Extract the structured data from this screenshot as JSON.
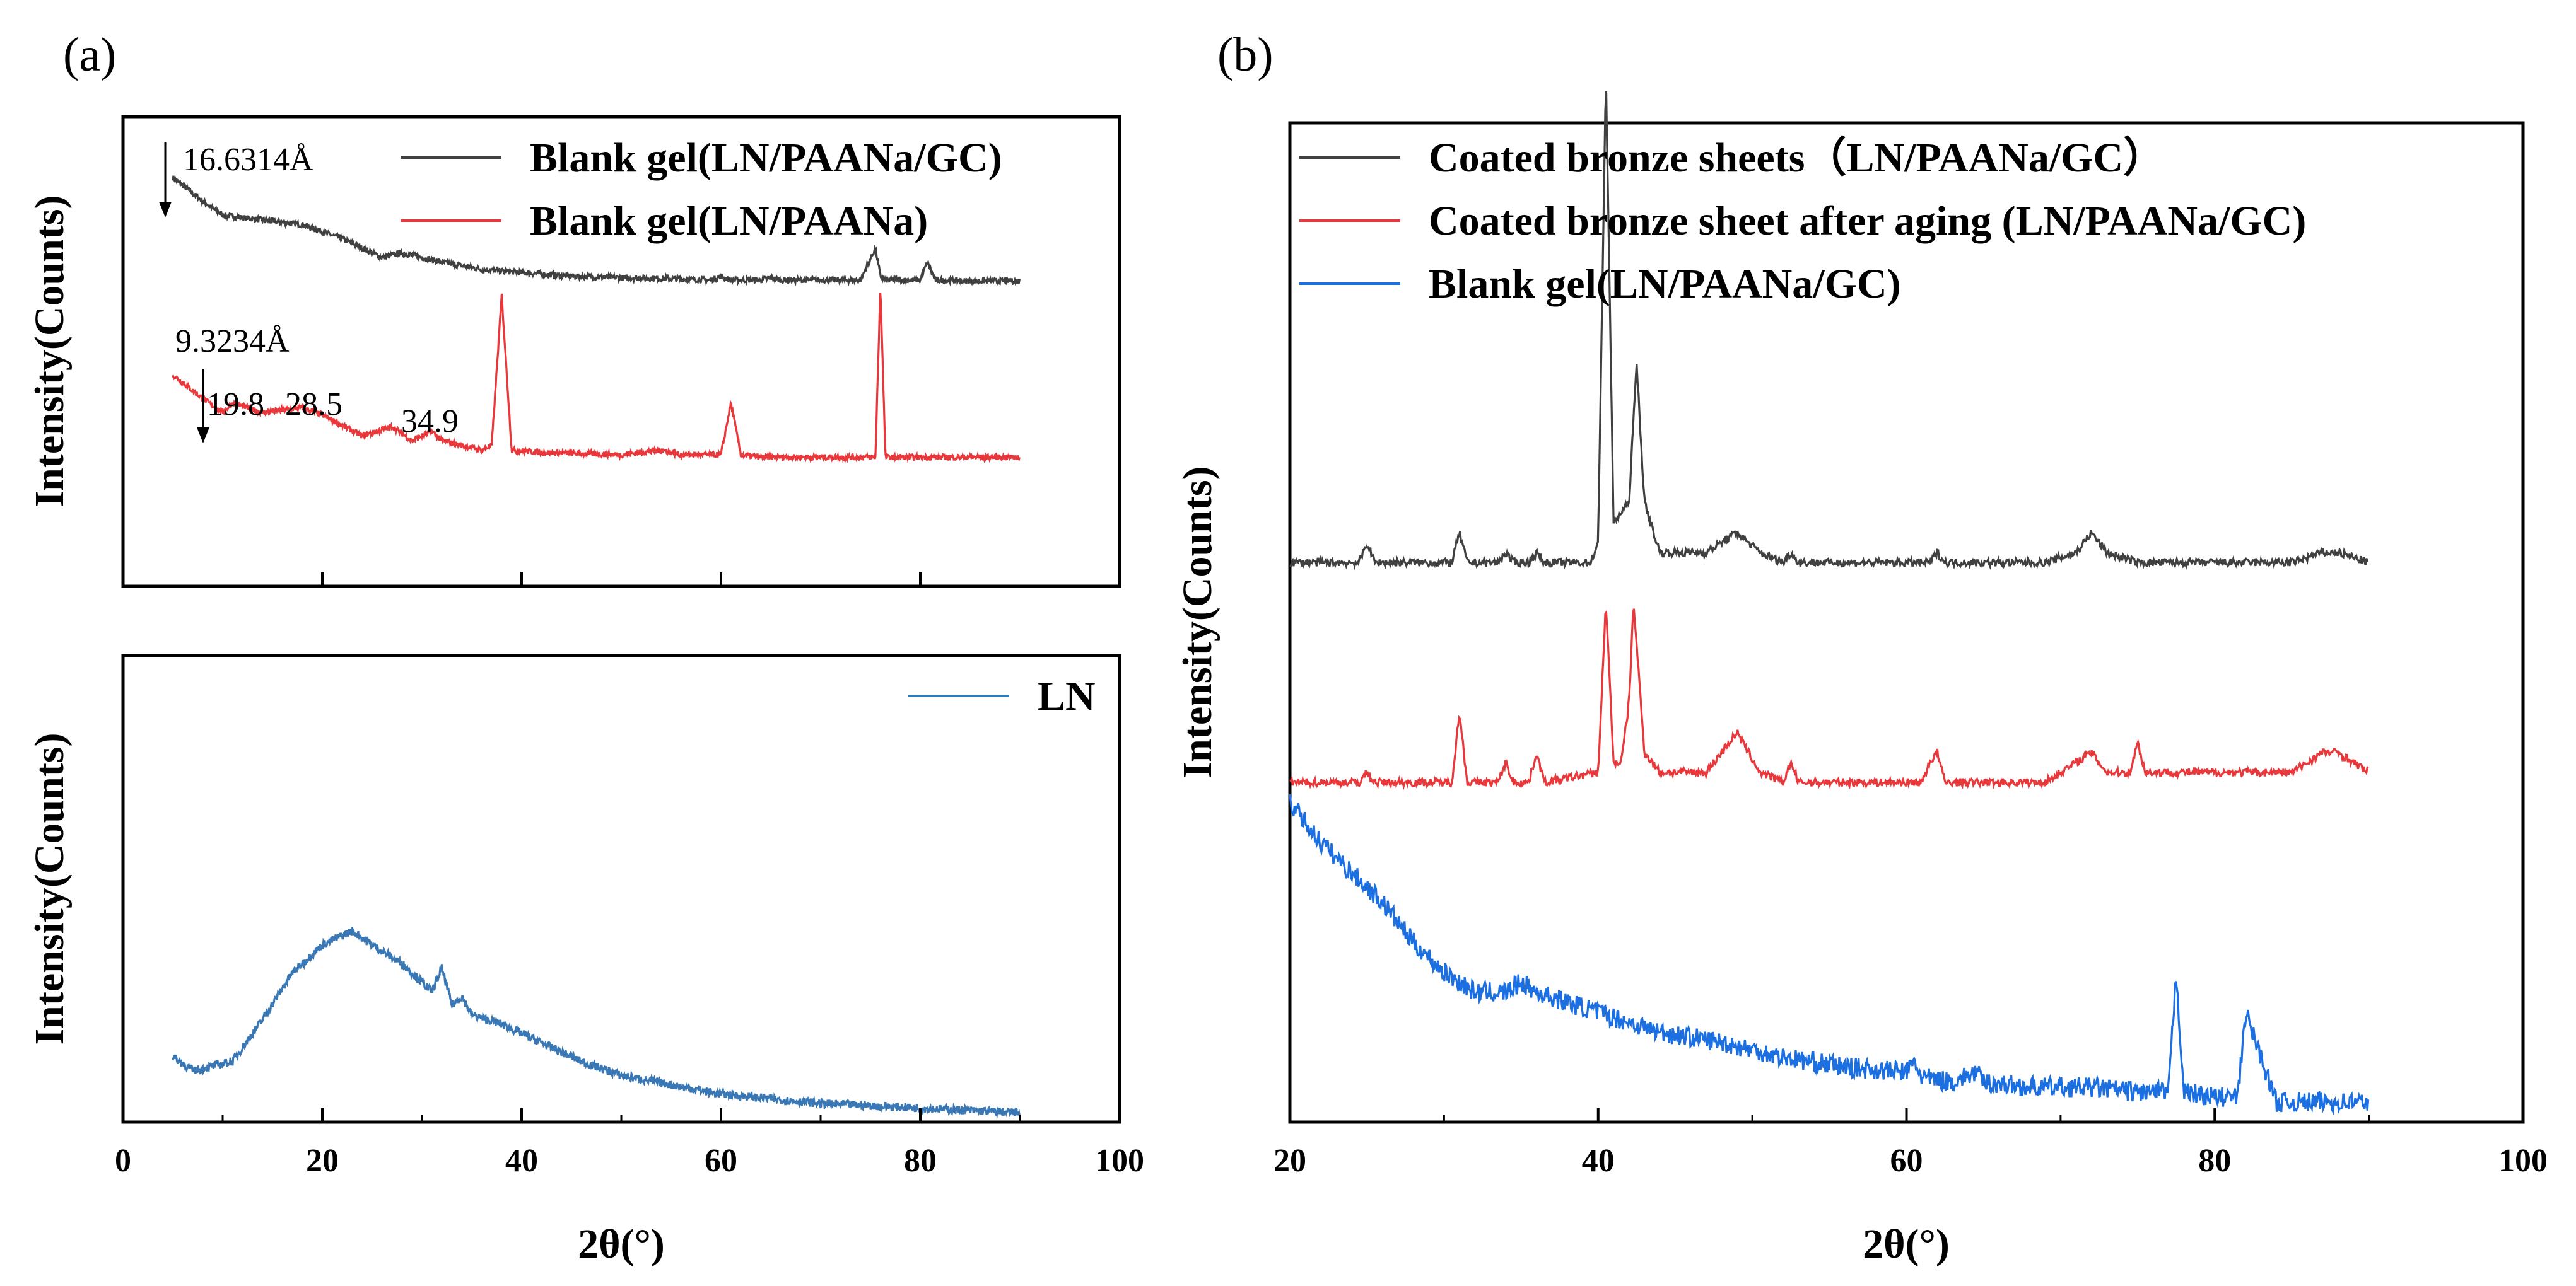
{
  "panels": {
    "a": {
      "label": "(a)"
    },
    "b": {
      "label": "(b)"
    }
  },
  "colors": {
    "gray": "#404040",
    "red": "#e8383b",
    "steelblue": "#3a78b5",
    "blue": "#1c6fe0"
  },
  "chart_data": [
    {
      "id": "a-top",
      "type": "line",
      "xlim": [
        0,
        100
      ],
      "ylabel": "Intensity(Counts)",
      "y_ticks_shown": false,
      "legend_position": "top-right",
      "series": [
        {
          "name": "Blank gel(LN/PAANa/GC)",
          "color": "#404040",
          "x": [
            5,
            8,
            10,
            14,
            18,
            22,
            26,
            28,
            32,
            36,
            40,
            45,
            50,
            55,
            59,
            60,
            61,
            64,
            65,
            66,
            70,
            74,
            75.5,
            76,
            76.5,
            80,
            80.7,
            81.5,
            85,
            90
          ],
          "y": [
            0.87,
            0.82,
            0.79,
            0.78,
            0.77,
            0.74,
            0.7,
            0.71,
            0.69,
            0.675,
            0.668,
            0.66,
            0.657,
            0.655,
            0.652,
            0.66,
            0.652,
            0.652,
            0.657,
            0.652,
            0.652,
            0.652,
            0.72,
            0.66,
            0.652,
            0.652,
            0.69,
            0.652,
            0.65,
            0.65
          ]
        },
        {
          "name": "Blank gel(LN/PAANa)",
          "color": "#e8383b",
          "x": [
            5,
            8,
            10,
            11,
            14,
            18,
            20,
            24,
            27,
            29,
            31,
            32,
            34,
            36,
            37,
            38,
            39,
            42,
            50,
            54,
            56,
            58,
            60,
            61,
            62,
            64,
            70,
            74,
            75.5,
            76,
            76.5,
            78,
            85,
            90
          ],
          "y": [
            0.45,
            0.4,
            0.37,
            0.39,
            0.37,
            0.38,
            0.365,
            0.32,
            0.34,
            0.31,
            0.33,
            0.31,
            0.3,
            0.29,
            0.3,
            0.62,
            0.29,
            0.285,
            0.28,
            0.29,
            0.28,
            0.28,
            0.28,
            0.39,
            0.28,
            0.275,
            0.275,
            0.275,
            0.275,
            0.64,
            0.275,
            0.275,
            0.275,
            0.275
          ]
        }
      ],
      "annotations": [
        {
          "text": "16.6314Å",
          "x": 5.5,
          "y": 0.95
        },
        {
          "text": "9.3234Å",
          "x": 7.5,
          "y": 0.53
        },
        {
          "text": "19.8",
          "x": 7.5,
          "y": 0.44
        },
        {
          "text": "28.5",
          "x": 15,
          "y": 0.44
        },
        {
          "text": "34.9",
          "x": 26,
          "y": 0.33
        }
      ]
    },
    {
      "id": "a-bottom",
      "type": "line",
      "xlim": [
        0,
        100
      ],
      "x_ticks": [
        0,
        20,
        40,
        60,
        80,
        100
      ],
      "xlabel": "2θ(°)",
      "ylabel": "Intensity(Counts)",
      "y_ticks_shown": false,
      "legend_position": "top-right",
      "series": [
        {
          "name": "LN",
          "color": "#3a78b5",
          "x": [
            5,
            7,
            9,
            11,
            14,
            17,
            20,
            22,
            23,
            25,
            28,
            30,
            31,
            32,
            33,
            34,
            35,
            38,
            42,
            46,
            50,
            55,
            60,
            65,
            70,
            75,
            80,
            85,
            90
          ],
          "y": [
            0.14,
            0.11,
            0.12,
            0.13,
            0.22,
            0.32,
            0.38,
            0.4,
            0.41,
            0.38,
            0.34,
            0.3,
            0.28,
            0.33,
            0.25,
            0.27,
            0.23,
            0.21,
            0.17,
            0.13,
            0.1,
            0.08,
            0.06,
            0.05,
            0.04,
            0.035,
            0.03,
            0.025,
            0.02
          ]
        }
      ]
    },
    {
      "id": "b",
      "type": "line",
      "xlim": [
        20,
        100
      ],
      "x_ticks": [
        20,
        40,
        60,
        80,
        100
      ],
      "xlabel": "2θ(°)",
      "ylabel": "Intensity(Counts)",
      "y_ticks_shown": false,
      "legend_position": "top-left",
      "series": [
        {
          "name": "Coated bronze sheets（LN/PAANa/GC）",
          "color": "#404040",
          "x": [
            20,
            24.5,
            25,
            25.5,
            30.5,
            31,
            31.5,
            33.5,
            34,
            34.5,
            35.5,
            36,
            36.5,
            39.5,
            40,
            40.5,
            41,
            42,
            42.5,
            43,
            44,
            47,
            49,
            50.5,
            52,
            52.5,
            53,
            61.5,
            62,
            62.5,
            69,
            71,
            72,
            73,
            75,
            85,
            87,
            88,
            90
          ],
          "y": [
            0.56,
            0.56,
            0.58,
            0.56,
            0.56,
            0.59,
            0.56,
            0.56,
            0.57,
            0.56,
            0.56,
            0.57,
            0.56,
            0.56,
            0.58,
            1.05,
            0.6,
            0.62,
            0.76,
            0.62,
            0.57,
            0.57,
            0.59,
            0.57,
            0.56,
            0.57,
            0.56,
            0.56,
            0.57,
            0.56,
            0.56,
            0.57,
            0.59,
            0.57,
            0.56,
            0.56,
            0.57,
            0.57,
            0.56
          ]
        },
        {
          "name": "Coated bronze sheet after aging (LN/PAANa/GC)",
          "color": "#e8383b",
          "x": [
            20,
            24.5,
            25,
            25.5,
            30.5,
            31,
            31.5,
            33.5,
            34,
            34.5,
            35.5,
            36,
            36.5,
            40,
            40.5,
            41,
            41.5,
            42,
            42.3,
            43,
            44,
            47,
            49,
            50.5,
            52,
            52.5,
            53,
            61,
            61.5,
            62,
            62.5,
            69,
            72,
            73,
            74.5,
            75,
            75.5,
            85,
            87,
            88,
            90
          ],
          "y": [
            0.34,
            0.34,
            0.35,
            0.34,
            0.34,
            0.41,
            0.34,
            0.34,
            0.36,
            0.34,
            0.34,
            0.37,
            0.34,
            0.35,
            0.52,
            0.36,
            0.36,
            0.42,
            0.52,
            0.37,
            0.35,
            0.35,
            0.39,
            0.35,
            0.34,
            0.36,
            0.34,
            0.34,
            0.36,
            0.37,
            0.34,
            0.34,
            0.37,
            0.35,
            0.35,
            0.38,
            0.35,
            0.35,
            0.37,
            0.37,
            0.35
          ]
        },
        {
          "name": "Blank gel(LN/PAANa/GC)",
          "color": "#1c6fe0",
          "x": [
            20,
            22,
            24,
            26,
            28,
            30,
            32,
            34,
            35,
            36,
            38,
            40,
            44,
            48,
            52,
            56,
            60,
            60.5,
            61,
            63,
            64.5,
            65,
            68,
            72,
            75,
            77,
            77.5,
            78,
            80,
            81.5,
            82,
            84,
            90
          ],
          "y": [
            0.32,
            0.28,
            0.25,
            0.22,
            0.18,
            0.15,
            0.13,
            0.13,
            0.14,
            0.13,
            0.12,
            0.11,
            0.09,
            0.08,
            0.065,
            0.055,
            0.05,
            0.06,
            0.045,
            0.04,
            0.05,
            0.04,
            0.035,
            0.035,
            0.03,
            0.03,
            0.15,
            0.03,
            0.025,
            0.025,
            0.11,
            0.02,
            0.02
          ]
        }
      ]
    }
  ]
}
